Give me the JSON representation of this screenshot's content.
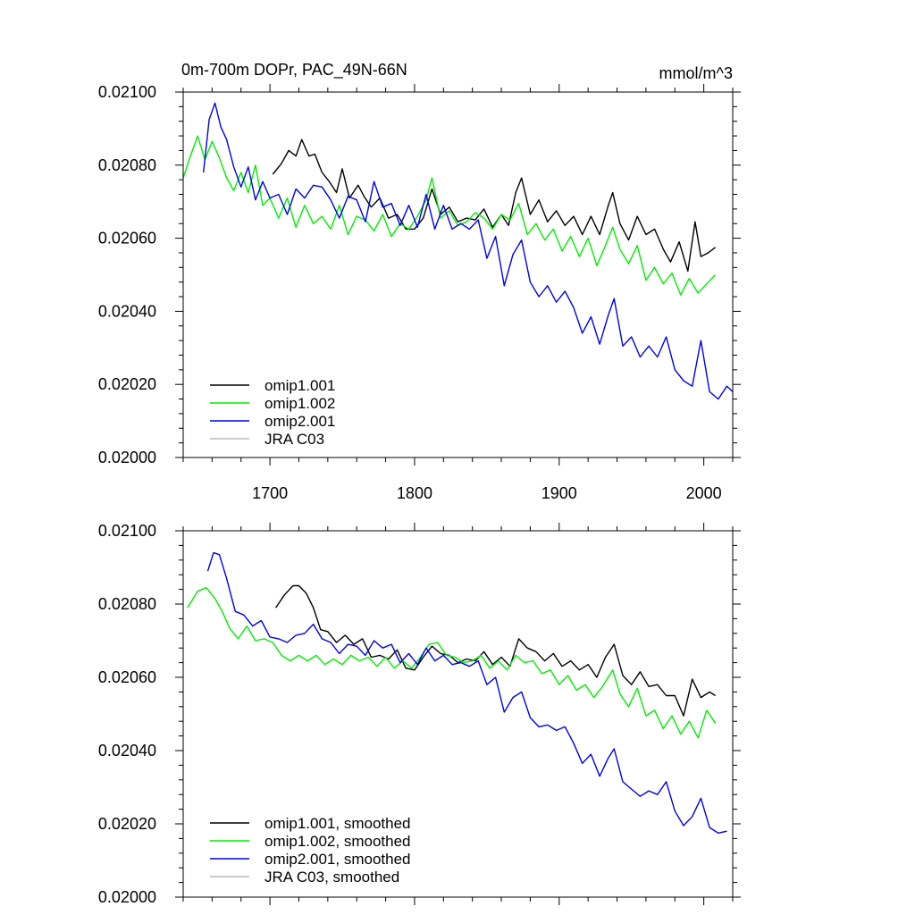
{
  "chart_data": [
    {
      "type": "line",
      "title": "0m-700m DOPr, PAC_49N-66N",
      "units": "mmol/m^3",
      "xlim": [
        1640,
        2020
      ],
      "ylim": [
        0.02,
        0.021
      ],
      "x_ticks": [
        "1700",
        "1800",
        "1900",
        "2000"
      ],
      "y_ticks": [
        "0.02000",
        "0.02020",
        "0.02040",
        "0.02060",
        "0.02080",
        "0.02100"
      ],
      "legend_position": "bottom-left",
      "series": [
        {
          "name": "omip1.001",
          "color": "#000000",
          "x": [
            1702,
            1708,
            1713,
            1718,
            1722,
            1727,
            1731,
            1736,
            1741,
            1746,
            1750,
            1755,
            1761,
            1765,
            1770,
            1776,
            1782,
            1788,
            1794,
            1800,
            1806,
            1812,
            1818,
            1824,
            1830,
            1836,
            1842,
            1848,
            1854,
            1860,
            1865,
            1870,
            1874,
            1880,
            1886,
            1892,
            1898,
            1904,
            1910,
            1916,
            1922,
            1928,
            1934,
            1937,
            1942,
            1948,
            1954,
            1960,
            1966,
            1972,
            1977,
            1983,
            1989,
            1994,
            1998,
            2003,
            2008
          ],
          "y": [
            0.020775,
            0.020805,
            0.02084,
            0.020825,
            0.02087,
            0.020825,
            0.02083,
            0.02078,
            0.020755,
            0.020725,
            0.02079,
            0.02071,
            0.020745,
            0.020715,
            0.020685,
            0.02071,
            0.020655,
            0.020665,
            0.020625,
            0.020625,
            0.020655,
            0.020735,
            0.020665,
            0.020685,
            0.020645,
            0.020655,
            0.02065,
            0.02068,
            0.02063,
            0.020665,
            0.020635,
            0.020725,
            0.020765,
            0.020665,
            0.020705,
            0.020645,
            0.020675,
            0.020635,
            0.02066,
            0.02061,
            0.02066,
            0.02061,
            0.02069,
            0.020725,
            0.02064,
            0.020595,
            0.02066,
            0.02061,
            0.020625,
            0.02057,
            0.020535,
            0.02059,
            0.02051,
            0.020645,
            0.02055,
            0.02056,
            0.020575
          ]
        },
        {
          "name": "omip1.002",
          "color": "#00ee00",
          "x": [
            1640,
            1645,
            1650,
            1655,
            1660,
            1665,
            1670,
            1675,
            1680,
            1685,
            1690,
            1695,
            1700,
            1706,
            1712,
            1718,
            1724,
            1730,
            1736,
            1742,
            1748,
            1754,
            1760,
            1766,
            1772,
            1778,
            1784,
            1790,
            1796,
            1802,
            1808,
            1812,
            1818,
            1824,
            1830,
            1836,
            1842,
            1848,
            1854,
            1860,
            1866,
            1872,
            1878,
            1884,
            1890,
            1896,
            1902,
            1908,
            1914,
            1920,
            1926,
            1932,
            1937,
            1942,
            1948,
            1954,
            1960,
            1966,
            1972,
            1978,
            1984,
            1990,
            1996,
            2002,
            2008
          ],
          "y": [
            0.020765,
            0.020825,
            0.02088,
            0.020815,
            0.020865,
            0.02082,
            0.020765,
            0.02073,
            0.02078,
            0.020725,
            0.0208,
            0.02069,
            0.02071,
            0.020655,
            0.02071,
            0.02063,
            0.02069,
            0.02064,
            0.02066,
            0.020625,
            0.02069,
            0.02061,
            0.02066,
            0.02065,
            0.02062,
            0.020665,
            0.020605,
            0.02064,
            0.020625,
            0.02066,
            0.020705,
            0.020765,
            0.020655,
            0.020675,
            0.020635,
            0.020645,
            0.02067,
            0.020655,
            0.020625,
            0.020665,
            0.02065,
            0.020695,
            0.02061,
            0.02064,
            0.020595,
            0.020625,
            0.020565,
            0.020605,
            0.02055,
            0.0206,
            0.020525,
            0.02058,
            0.02063,
            0.02057,
            0.02053,
            0.02058,
            0.020485,
            0.02052,
            0.020475,
            0.020505,
            0.020445,
            0.02049,
            0.02045,
            0.020475,
            0.0205
          ]
        },
        {
          "name": "omip2.001",
          "color": "#0000ee",
          "x": [
            1654,
            1658,
            1662,
            1666,
            1670,
            1675,
            1680,
            1685,
            1690,
            1695,
            1700,
            1706,
            1712,
            1718,
            1724,
            1730,
            1736,
            1742,
            1748,
            1754,
            1760,
            1766,
            1772,
            1778,
            1784,
            1790,
            1796,
            1802,
            1808,
            1814,
            1820,
            1826,
            1832,
            1838,
            1844,
            1850,
            1856,
            1862,
            1868,
            1874,
            1880,
            1886,
            1892,
            1898,
            1904,
            1910,
            1916,
            1922,
            1928,
            1934,
            1938,
            1944,
            1950,
            1956,
            1962,
            1968,
            1974,
            1980,
            1986,
            1992,
            1998,
            2004,
            2010,
            2016,
            2020
          ],
          "y": [
            0.02078,
            0.020925,
            0.02097,
            0.020905,
            0.02087,
            0.020795,
            0.02074,
            0.020795,
            0.020705,
            0.020755,
            0.02071,
            0.02072,
            0.020665,
            0.020735,
            0.02071,
            0.020745,
            0.02074,
            0.020705,
            0.020655,
            0.020715,
            0.020705,
            0.020645,
            0.020755,
            0.020685,
            0.020695,
            0.020635,
            0.02069,
            0.02063,
            0.02072,
            0.020625,
            0.02069,
            0.020625,
            0.02064,
            0.020625,
            0.02065,
            0.020545,
            0.020605,
            0.02047,
            0.020555,
            0.020595,
            0.02048,
            0.02044,
            0.02047,
            0.020425,
            0.020455,
            0.02041,
            0.02034,
            0.020385,
            0.02031,
            0.02039,
            0.020435,
            0.020305,
            0.02033,
            0.020275,
            0.020305,
            0.020275,
            0.02033,
            0.02024,
            0.02021,
            0.020195,
            0.02032,
            0.02018,
            0.02016,
            0.020195,
            0.02018
          ]
        },
        {
          "name": "JRA C03",
          "color": "#bbbbbb",
          "x": [],
          "y": []
        }
      ]
    },
    {
      "type": "line",
      "title": "",
      "xlim": [
        1640,
        2020
      ],
      "ylim": [
        0.02,
        0.021
      ],
      "y_ticks": [
        "0.02000",
        "0.02020",
        "0.02040",
        "0.02060",
        "0.02080",
        "0.02100"
      ],
      "legend_position": "bottom-left",
      "series": [
        {
          "name": "omip1.001, smoothed",
          "color": "#000000",
          "x": [
            1704,
            1710,
            1716,
            1720,
            1725,
            1730,
            1735,
            1740,
            1746,
            1752,
            1758,
            1764,
            1770,
            1776,
            1782,
            1788,
            1794,
            1800,
            1806,
            1812,
            1818,
            1824,
            1830,
            1836,
            1842,
            1848,
            1854,
            1860,
            1866,
            1872,
            1878,
            1884,
            1890,
            1896,
            1902,
            1908,
            1914,
            1920,
            1926,
            1932,
            1938,
            1944,
            1950,
            1956,
            1962,
            1968,
            1974,
            1980,
            1986,
            1992,
            1998,
            2004,
            2008
          ],
          "y": [
            0.02079,
            0.020825,
            0.02085,
            0.02085,
            0.02083,
            0.02079,
            0.02073,
            0.020725,
            0.020695,
            0.020715,
            0.02069,
            0.020705,
            0.020655,
            0.02066,
            0.02065,
            0.020675,
            0.020625,
            0.02062,
            0.020655,
            0.020685,
            0.020665,
            0.02066,
            0.02064,
            0.02065,
            0.020645,
            0.02067,
            0.020635,
            0.020655,
            0.02063,
            0.020705,
            0.02068,
            0.02067,
            0.020645,
            0.020665,
            0.02063,
            0.020645,
            0.02062,
            0.020635,
            0.0206,
            0.020655,
            0.02069,
            0.020605,
            0.02058,
            0.020615,
            0.020575,
            0.02058,
            0.02055,
            0.02055,
            0.020495,
            0.020595,
            0.020545,
            0.02056,
            0.02055
          ]
        },
        {
          "name": "omip1.002, smoothed",
          "color": "#00ee00",
          "x": [
            1643,
            1650,
            1656,
            1662,
            1667,
            1672,
            1678,
            1684,
            1690,
            1696,
            1702,
            1708,
            1714,
            1720,
            1726,
            1732,
            1738,
            1744,
            1750,
            1756,
            1762,
            1768,
            1774,
            1780,
            1786,
            1792,
            1798,
            1804,
            1810,
            1816,
            1822,
            1828,
            1834,
            1840,
            1846,
            1852,
            1858,
            1864,
            1870,
            1876,
            1882,
            1888,
            1894,
            1900,
            1906,
            1912,
            1918,
            1924,
            1930,
            1937,
            1942,
            1948,
            1954,
            1960,
            1966,
            1972,
            1978,
            1984,
            1990,
            1996,
            2002,
            2008
          ],
          "y": [
            0.02079,
            0.020835,
            0.020845,
            0.020815,
            0.02078,
            0.020735,
            0.020705,
            0.02074,
            0.0207,
            0.020705,
            0.020695,
            0.02066,
            0.020645,
            0.02066,
            0.020645,
            0.02066,
            0.020635,
            0.02065,
            0.020635,
            0.02066,
            0.020645,
            0.020655,
            0.02063,
            0.020655,
            0.020625,
            0.020645,
            0.020625,
            0.020655,
            0.02069,
            0.020695,
            0.02066,
            0.020655,
            0.02064,
            0.020645,
            0.02066,
            0.020625,
            0.020645,
            0.02062,
            0.02066,
            0.02064,
            0.020645,
            0.02061,
            0.02062,
            0.02058,
            0.020605,
            0.020565,
            0.02058,
            0.020545,
            0.020575,
            0.02062,
            0.020555,
            0.02052,
            0.02057,
            0.020495,
            0.02051,
            0.02046,
            0.020495,
            0.020445,
            0.02048,
            0.020435,
            0.02051,
            0.020475
          ]
        },
        {
          "name": "omip2.001, smoothed",
          "color": "#0000ee",
          "x": [
            1657,
            1661,
            1665,
            1670,
            1676,
            1682,
            1688,
            1694,
            1700,
            1706,
            1712,
            1718,
            1724,
            1730,
            1736,
            1742,
            1748,
            1754,
            1760,
            1766,
            1772,
            1778,
            1784,
            1790,
            1796,
            1802,
            1808,
            1814,
            1820,
            1826,
            1832,
            1838,
            1844,
            1850,
            1856,
            1862,
            1868,
            1874,
            1880,
            1886,
            1892,
            1898,
            1904,
            1910,
            1916,
            1922,
            1928,
            1934,
            1938,
            1944,
            1950,
            1956,
            1962,
            1968,
            1974,
            1980,
            1986,
            1992,
            1998,
            2004,
            2010,
            2016
          ],
          "y": [
            0.02089,
            0.02094,
            0.020935,
            0.02087,
            0.02078,
            0.02077,
            0.02074,
            0.020755,
            0.02071,
            0.020705,
            0.020695,
            0.020715,
            0.02072,
            0.020745,
            0.020705,
            0.020695,
            0.020665,
            0.02069,
            0.020685,
            0.02066,
            0.0207,
            0.02068,
            0.02069,
            0.02064,
            0.020665,
            0.020635,
            0.02068,
            0.020645,
            0.02066,
            0.020635,
            0.02064,
            0.02063,
            0.020645,
            0.02058,
            0.0206,
            0.020505,
            0.020545,
            0.02056,
            0.02049,
            0.020465,
            0.02047,
            0.020455,
            0.020465,
            0.02042,
            0.020365,
            0.02039,
            0.02033,
            0.02038,
            0.020405,
            0.020315,
            0.020295,
            0.020275,
            0.02029,
            0.02028,
            0.020315,
            0.020235,
            0.020195,
            0.02022,
            0.02027,
            0.02019,
            0.020175,
            0.02018
          ]
        },
        {
          "name": "JRA C03, smoothed",
          "color": "#bbbbbb",
          "x": [],
          "y": []
        }
      ]
    }
  ]
}
